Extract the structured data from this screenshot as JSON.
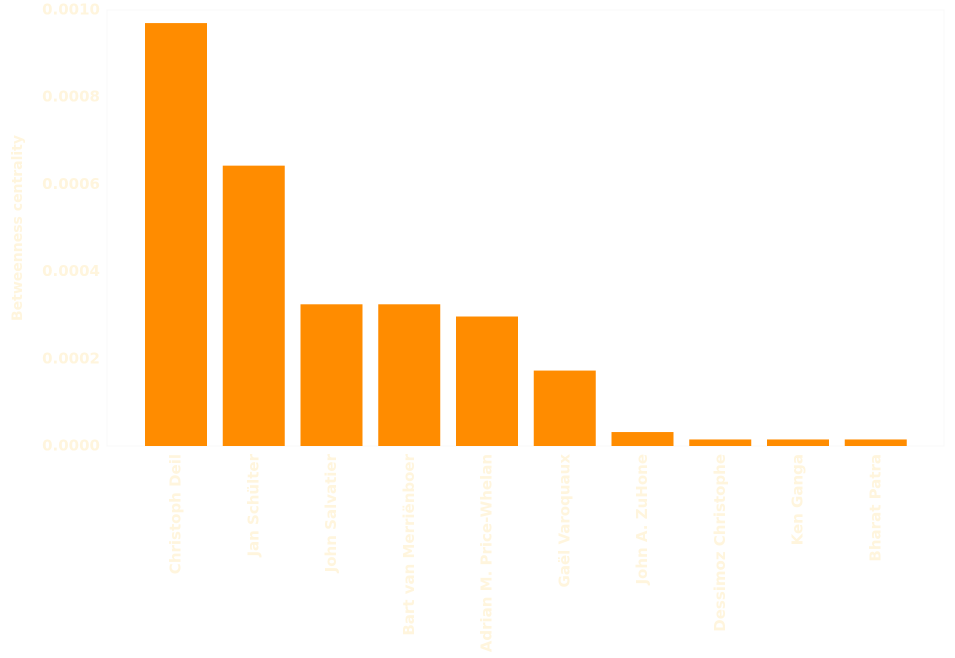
{
  "chart_data": {
    "type": "bar",
    "title": "",
    "xlabel": "",
    "ylabel": "Betweenness centrality",
    "categories": [
      "Christoph Deil",
      "Jan Schülter",
      "John Salvatier",
      "Bart van Merriënboer",
      "Adrian M. Price-Whelan",
      "Gaël Varoquaux",
      "John A. ZuHone",
      "Dessimoz  Christophe",
      "Ken Ganga",
      "Bharat Patra"
    ],
    "values": [
      0.00097,
      0.000643,
      0.000325,
      0.000325,
      0.000297,
      0.000173,
      3.2e-05,
      1.5e-05,
      1.5e-05,
      1.5e-05
    ],
    "ylim": [
      0,
      0.001
    ],
    "yticks": [
      "0.0000",
      "0.0002",
      "0.0004",
      "0.0006",
      "0.0008",
      "0.0010"
    ],
    "ytick_values": [
      0,
      0.0002,
      0.0004,
      0.0006,
      0.0008,
      0.001
    ],
    "grid": false,
    "legend": "none",
    "colors": {
      "bar": "#ff8c00",
      "text": "#fff5dd",
      "frame": "#f8f8f8"
    }
  }
}
